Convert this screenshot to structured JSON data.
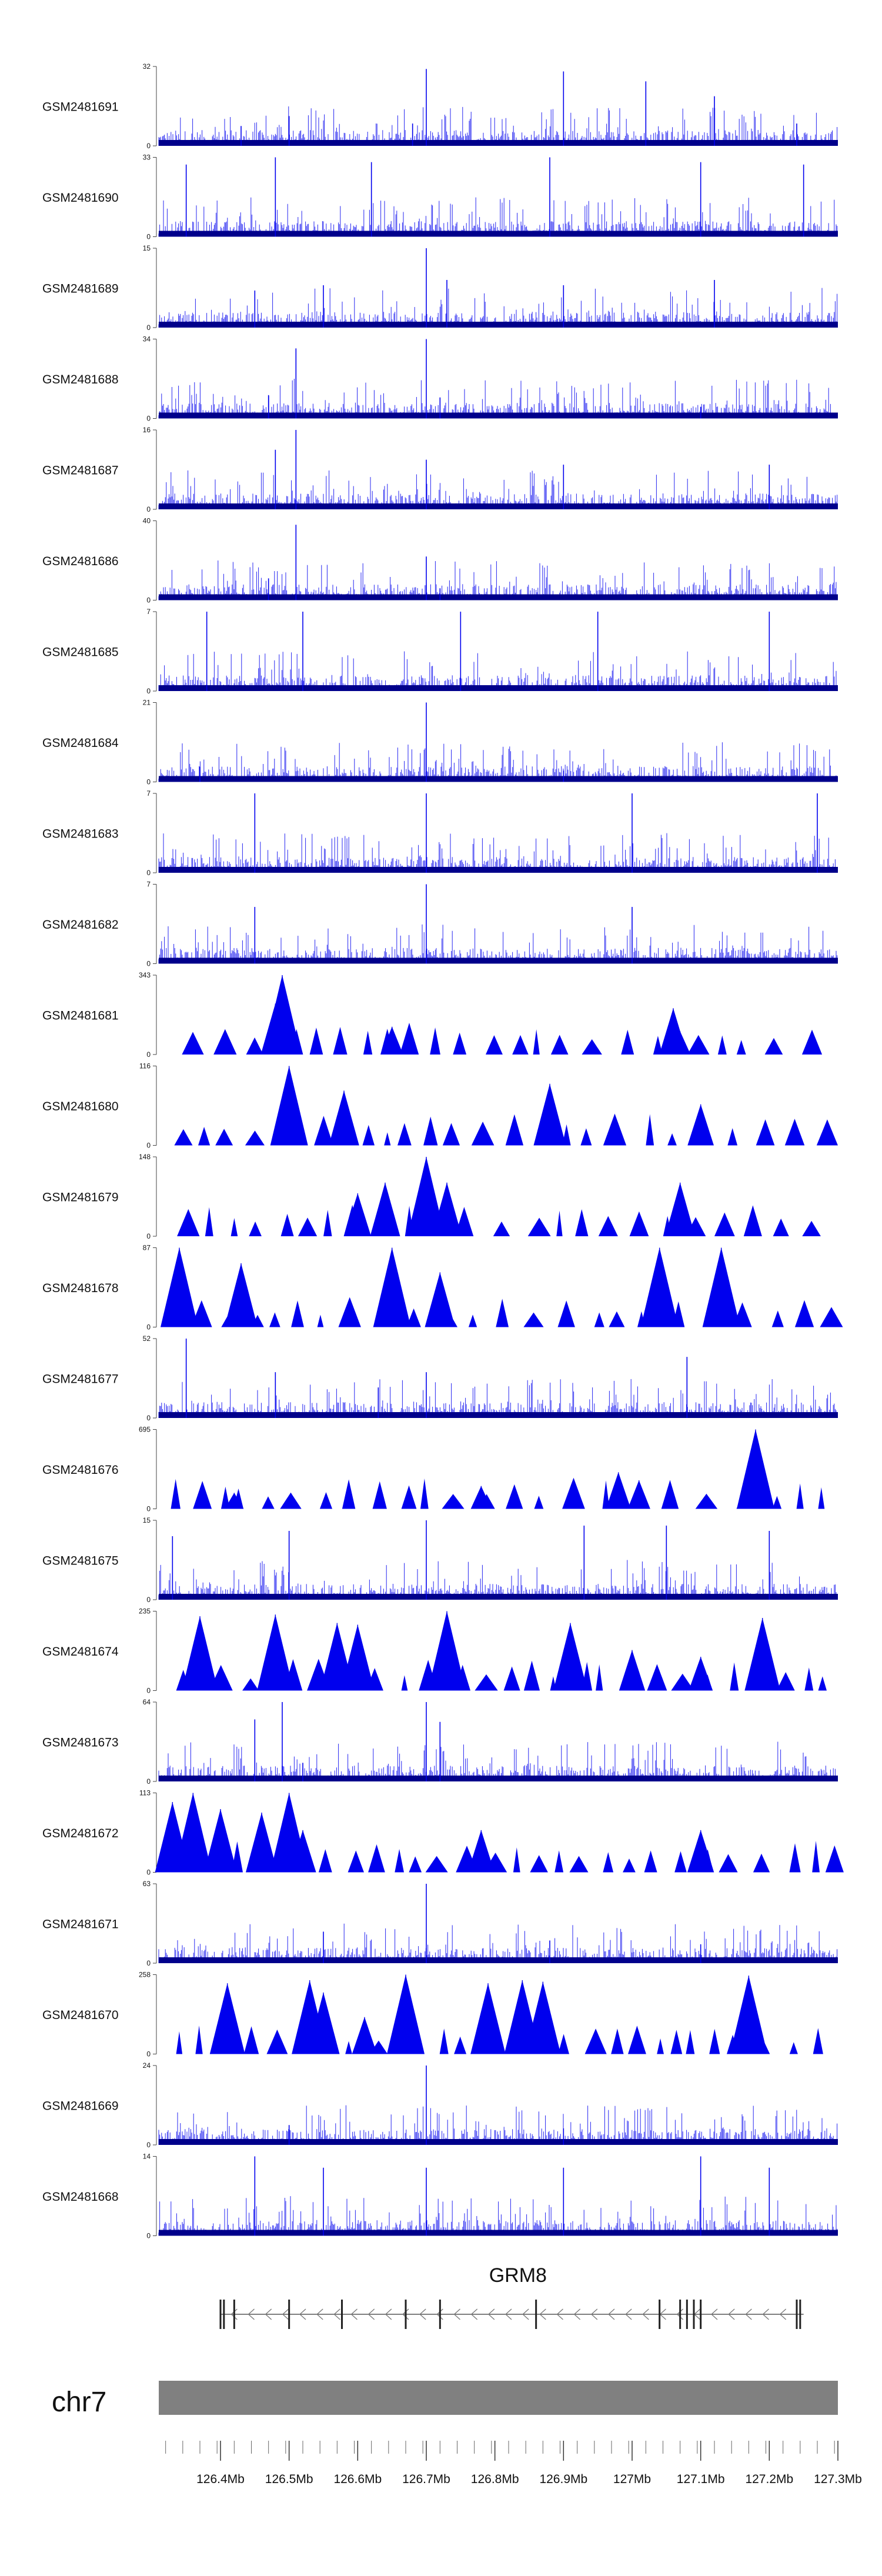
{
  "chart_data": {
    "type": "genome-track-bar",
    "region": {
      "chrom": "chr7",
      "start_mb": 126.31,
      "end_mb": 127.3
    },
    "tracks": [
      {
        "name": "GSM2481691",
        "ymax": 32,
        "ymin": 0,
        "style": "dense",
        "peaks": [
          [
            126.43,
            8
          ],
          [
            126.5,
            12
          ],
          [
            126.68,
            9
          ],
          [
            126.7,
            31
          ],
          [
            126.9,
            30
          ],
          [
            127.02,
            26
          ],
          [
            127.12,
            20
          ],
          [
            127.24,
            9
          ]
        ]
      },
      {
        "name": "GSM2481690",
        "ymax": 33,
        "ymin": 0,
        "style": "dense",
        "peaks": [
          [
            126.35,
            30
          ],
          [
            126.48,
            33
          ],
          [
            126.62,
            31
          ],
          [
            126.88,
            33
          ],
          [
            127.1,
            31
          ],
          [
            127.25,
            30
          ]
        ]
      },
      {
        "name": "GSM2481689",
        "ymax": 15,
        "ymin": 0,
        "style": "dense",
        "peaks": [
          [
            126.45,
            7
          ],
          [
            126.55,
            8
          ],
          [
            126.7,
            15
          ],
          [
            126.73,
            9
          ],
          [
            126.9,
            8
          ],
          [
            127.12,
            9
          ]
        ]
      },
      {
        "name": "GSM2481688",
        "ymax": 34,
        "ymin": 0,
        "style": "dense",
        "peaks": [
          [
            126.47,
            10
          ],
          [
            126.51,
            30
          ],
          [
            126.7,
            34
          ],
          [
            126.72,
            9
          ],
          [
            127.1,
            5
          ]
        ]
      },
      {
        "name": "GSM2481687",
        "ymax": 16,
        "ymin": 0,
        "style": "dense",
        "peaks": [
          [
            126.48,
            12
          ],
          [
            126.51,
            16
          ],
          [
            126.7,
            10
          ],
          [
            126.9,
            9
          ],
          [
            127.2,
            9
          ]
        ]
      },
      {
        "name": "GSM2481686",
        "ymax": 40,
        "ymin": 0,
        "style": "dense",
        "peaks": [
          [
            126.47,
            11
          ],
          [
            126.51,
            38
          ],
          [
            126.7,
            22
          ],
          [
            126.72,
            6
          ]
        ]
      },
      {
        "name": "GSM2481685",
        "ymax": 7,
        "ymin": 0,
        "style": "dense",
        "peaks": [
          [
            126.38,
            7
          ],
          [
            126.52,
            7
          ],
          [
            126.75,
            7
          ],
          [
            126.95,
            7
          ],
          [
            127.2,
            7
          ]
        ]
      },
      {
        "name": "GSM2481684",
        "ymax": 21,
        "ymin": 0,
        "style": "dense",
        "peaks": [
          [
            126.37,
            4
          ],
          [
            126.7,
            21
          ],
          [
            126.9,
            3
          ]
        ]
      },
      {
        "name": "GSM2481683",
        "ymax": 7,
        "ymin": 0,
        "style": "dense",
        "peaks": [
          [
            126.45,
            7
          ],
          [
            126.7,
            7
          ],
          [
            127.0,
            7
          ],
          [
            127.27,
            7
          ]
        ]
      },
      {
        "name": "GSM2481682",
        "ymax": 7,
        "ymin": 0,
        "style": "dense",
        "peaks": [
          [
            126.45,
            5
          ],
          [
            126.7,
            7
          ],
          [
            127.0,
            5
          ]
        ]
      },
      {
        "name": "GSM2481681",
        "ymax": 343,
        "ymin": 0,
        "style": "triangles",
        "peaks": [
          [
            126.49,
            343
          ],
          [
            126.48,
            220
          ],
          [
            126.65,
            120
          ],
          [
            127.06,
            200
          ],
          [
            127.07,
            100
          ]
        ]
      },
      {
        "name": "GSM2481680",
        "ymax": 116,
        "ymin": 0,
        "style": "triangles",
        "peaks": [
          [
            126.5,
            116
          ],
          [
            126.58,
            80
          ],
          [
            126.88,
            90
          ],
          [
            127.1,
            60
          ]
        ]
      },
      {
        "name": "GSM2481679",
        "ymax": 148,
        "ymin": 0,
        "style": "triangles",
        "peaks": [
          [
            126.7,
            148
          ],
          [
            126.64,
            100
          ],
          [
            126.73,
            100
          ],
          [
            127.07,
            100
          ],
          [
            126.6,
            80
          ]
        ]
      },
      {
        "name": "GSM2481678",
        "ymax": 87,
        "ymin": 0,
        "style": "triangles",
        "peaks": [
          [
            126.34,
            87
          ],
          [
            126.43,
            70
          ],
          [
            126.65,
            87
          ],
          [
            127.04,
            87
          ],
          [
            127.13,
            87
          ],
          [
            126.72,
            60
          ]
        ]
      },
      {
        "name": "GSM2481677",
        "ymax": 52,
        "ymin": 0,
        "style": "dense",
        "peaks": [
          [
            126.35,
            52
          ],
          [
            126.48,
            30
          ],
          [
            126.63,
            20
          ],
          [
            126.7,
            30
          ],
          [
            127.08,
            40
          ]
        ]
      },
      {
        "name": "GSM2481676",
        "ymax": 695,
        "ymin": 0,
        "style": "triangles",
        "peaks": [
          [
            127.18,
            695
          ],
          [
            126.98,
            320
          ],
          [
            127.01,
            250
          ],
          [
            126.78,
            200
          ],
          [
            126.42,
            140
          ]
        ]
      },
      {
        "name": "GSM2481675",
        "ymax": 15,
        "ymin": 0,
        "style": "dense",
        "peaks": [
          [
            126.33,
            12
          ],
          [
            126.5,
            13
          ],
          [
            126.7,
            15
          ],
          [
            126.93,
            14
          ],
          [
            127.05,
            14
          ],
          [
            127.2,
            13
          ]
        ]
      },
      {
        "name": "GSM2481674",
        "ymax": 235,
        "ymin": 0,
        "style": "triangles",
        "peaks": [
          [
            126.37,
            220
          ],
          [
            126.48,
            225
          ],
          [
            126.57,
            200
          ],
          [
            126.6,
            195
          ],
          [
            126.73,
            235
          ],
          [
            126.91,
            200
          ],
          [
            127.19,
            215
          ],
          [
            127.0,
            120
          ],
          [
            127.1,
            100
          ]
        ]
      },
      {
        "name": "GSM2481673",
        "ymax": 64,
        "ymin": 0,
        "style": "dense",
        "peaks": [
          [
            126.45,
            50
          ],
          [
            126.49,
            64
          ],
          [
            126.7,
            64
          ],
          [
            126.72,
            48
          ],
          [
            126.52,
            15
          ]
        ]
      },
      {
        "name": "GSM2481672",
        "ymax": 113,
        "ymin": 0,
        "style": "triangles",
        "peaks": [
          [
            126.33,
            100
          ],
          [
            126.36,
            113
          ],
          [
            126.4,
            90
          ],
          [
            126.46,
            85
          ],
          [
            126.5,
            113
          ],
          [
            126.52,
            60
          ],
          [
            126.78,
            60
          ],
          [
            127.1,
            60
          ]
        ]
      },
      {
        "name": "GSM2481671",
        "ymax": 63,
        "ymin": 0,
        "style": "dense",
        "peaks": [
          [
            126.7,
            63
          ],
          [
            126.55,
            25
          ],
          [
            126.88,
            18
          ],
          [
            127.1,
            15
          ]
        ]
      },
      {
        "name": "GSM2481670",
        "ymax": 258,
        "ymin": 0,
        "style": "triangles",
        "peaks": [
          [
            126.41,
            230
          ],
          [
            126.53,
            240
          ],
          [
            126.67,
            258
          ],
          [
            126.79,
            230
          ],
          [
            126.84,
            240
          ],
          [
            126.87,
            235
          ],
          [
            127.17,
            255
          ],
          [
            126.61,
            120
          ],
          [
            126.55,
            200
          ]
        ]
      },
      {
        "name": "GSM2481669",
        "ymax": 24,
        "ymin": 0,
        "style": "dense",
        "peaks": [
          [
            126.7,
            24
          ],
          [
            126.5,
            6
          ],
          [
            126.9,
            5
          ]
        ]
      },
      {
        "name": "GSM2481668",
        "ymax": 14,
        "ymin": 0,
        "style": "dense",
        "peaks": [
          [
            126.45,
            14
          ],
          [
            126.55,
            12
          ],
          [
            126.7,
            12
          ],
          [
            126.9,
            12
          ],
          [
            127.1,
            14
          ],
          [
            127.2,
            12
          ]
        ]
      }
    ],
    "gene": {
      "name": "GRM8",
      "start_mb": 126.4,
      "end_mb": 127.25,
      "strand": "-",
      "exons_mb": [
        126.4,
        126.405,
        126.42,
        126.5,
        126.577,
        126.67,
        126.72,
        126.86,
        127.04,
        127.07,
        127.08,
        127.09,
        127.1,
        127.24,
        127.245
      ]
    },
    "ideogram": {
      "label": "chr7",
      "color": "#808080"
    },
    "axis": {
      "ticks_mb": [
        126.4,
        126.5,
        126.6,
        126.7,
        126.8,
        126.9,
        127.0,
        127.1,
        127.2,
        127.3
      ],
      "tick_labels": [
        "126.4Mb",
        "126.5Mb",
        "126.6Mb",
        "126.7Mb",
        "126.8Mb",
        "126.9Mb",
        "127Mb",
        "127.1Mb",
        "127.2Mb",
        "127.3Mb"
      ],
      "minor_step_mb": 0.025
    },
    "colors": {
      "track_fill": "#0000ee",
      "dense_base": "#00008b",
      "line": "#333333"
    }
  }
}
